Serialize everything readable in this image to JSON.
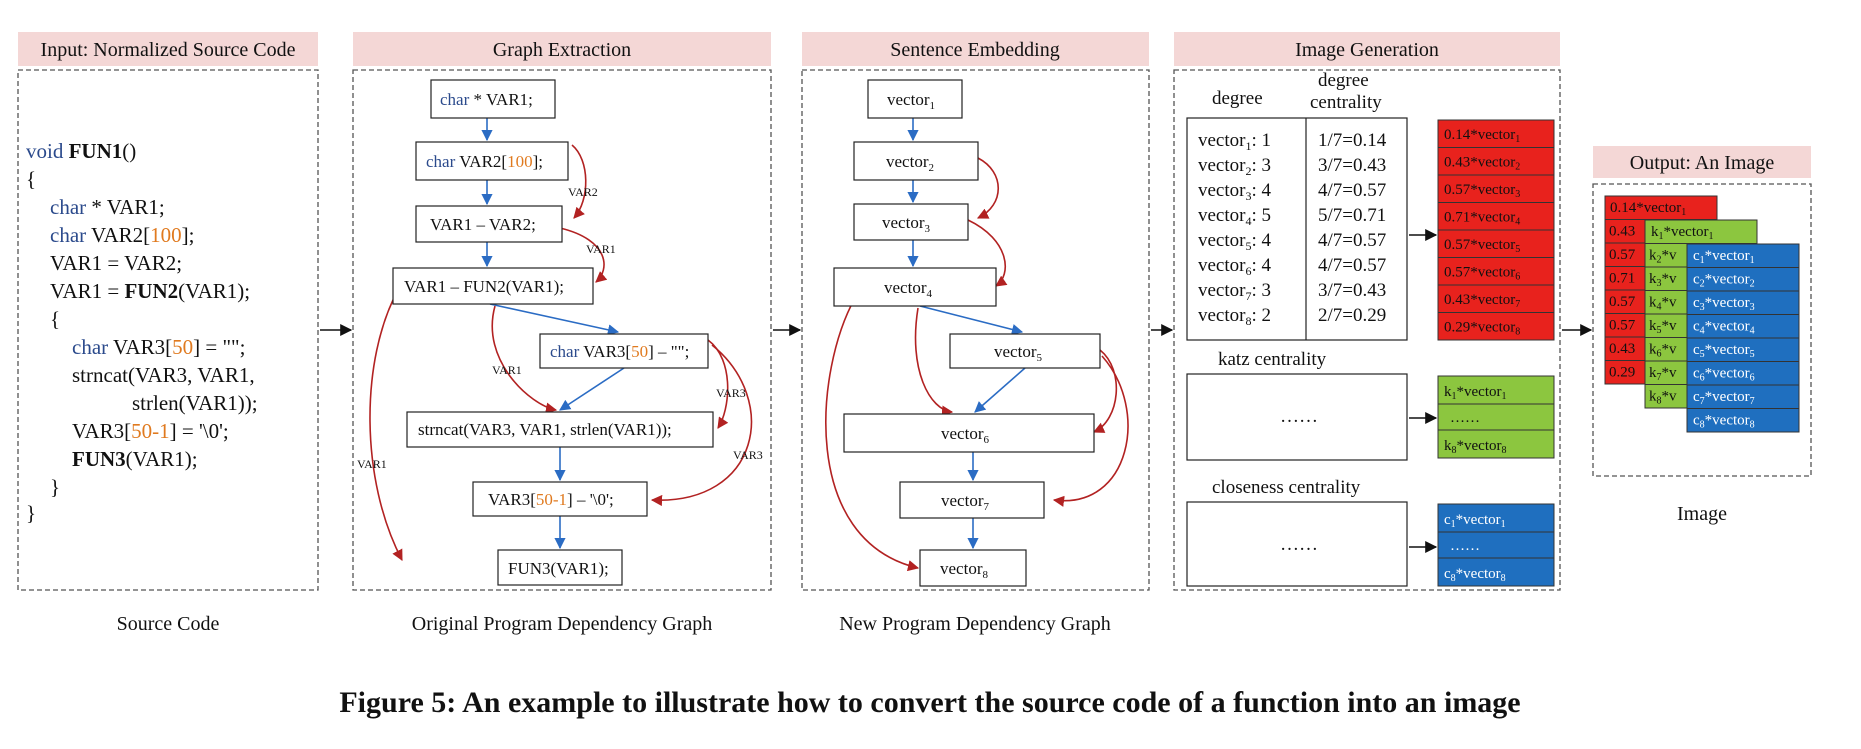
{
  "headers": {
    "input": "Input: Normalized Source Code",
    "graph": "Graph Extraction",
    "embed": "Sentence Embedding",
    "image": "Image Generation",
    "output": "Output: An Image"
  },
  "captions": {
    "source": "Source Code",
    "original": "Original Program Dependency Graph",
    "new": "New Program Dependency Graph",
    "image": "Image"
  },
  "figure_caption": "Figure 5: An example to illustrate how to convert the source code of a function into an image",
  "code": {
    "l1_kw": "void ",
    "l1_fn": "FUN1",
    "l1_rest": "()",
    "l2": "{",
    "l3_kw": "char",
    "l3_rest": " * VAR1;",
    "l4_kw": "char",
    "l4_a": " VAR2[",
    "l4_num": "100",
    "l4_b": "];",
    "l5": "VAR1 = VAR2;",
    "l6_a": "VAR1 = ",
    "l6_fn": "FUN2",
    "l6_b": "(VAR1);",
    "l7": "{",
    "l8_kw": "char",
    "l8_a": " VAR3[",
    "l8_num": "50",
    "l8_b": "] = \"\";",
    "l9": "strncat(VAR3, VAR1,",
    "l10": "strlen(VAR1));",
    "l11_a": "VAR3[",
    "l11_num": "50-1",
    "l11_b": "] = '\\0';",
    "l12_fn": "FUN3",
    "l12_b": "(VAR1);",
    "l13": "}",
    "l14": "}"
  },
  "pdg_nodes": {
    "n1_kw": "char",
    "n1_rest": " * VAR1;",
    "n2_kw": "char",
    "n2_a": " VAR2[",
    "n2_num": "100",
    "n2_b": "];",
    "n3": "VAR1 – VAR2;",
    "n4": "VAR1 – FUN2(VAR1);",
    "n5_kw": "char",
    "n5_a": " VAR3[",
    "n5_num": "50",
    "n5_b": "] – \"\";",
    "n6": "strncat(VAR3, VAR1, strlen(VAR1));",
    "n7_a": "VAR3[",
    "n7_num": "50-1",
    "n7_b": "] – '\\0';",
    "n8": "FUN3(VAR1);"
  },
  "edge_labels": {
    "e_var2": "VAR2",
    "e_var1a": "VAR1",
    "e_var1b": "VAR1",
    "e_var3a": "VAR3",
    "e_var3b": "VAR3",
    "e_var1c": "VAR1"
  },
  "vector_word": "vector",
  "vector_subs": [
    "1",
    "2",
    "3",
    "4",
    "5",
    "6",
    "7",
    "8"
  ],
  "table": {
    "col1": "degree",
    "col2a": "degree",
    "col2b": "centrality",
    "rows": [
      {
        "sub": "1",
        "deg": ": 1",
        "cent": "1/7=0.14"
      },
      {
        "sub": "2",
        "deg": ": 3",
        "cent": "3/7=0.43"
      },
      {
        "sub": "3",
        "deg": ": 4",
        "cent": "4/7=0.57"
      },
      {
        "sub": "4",
        "deg": ": 5",
        "cent": "5/7=0.71"
      },
      {
        "sub": "5",
        "deg": ": 4",
        "cent": "4/7=0.57"
      },
      {
        "sub": "6",
        "deg": ": 4",
        "cent": "4/7=0.57"
      },
      {
        "sub": "7",
        "deg": ": 3",
        "cent": "3/7=0.43"
      },
      {
        "sub": "8",
        "deg": ": 2",
        "cent": "2/7=0.29"
      }
    ],
    "katz_label": "katz centrality",
    "closeness_label": "closeness centrality",
    "ellipsis": "……"
  },
  "red_cells": [
    "0.14*vector",
    "0.43*vector",
    "0.57*vector",
    "0.71*vector",
    "0.57*vector",
    "0.57*vector",
    "0.43*vector",
    "0.29*vector"
  ],
  "green_cells": {
    "top_a": "k",
    "top_sub": "1",
    "top_b": "*vector",
    "top_vsub": "1",
    "mid": "……",
    "bot_a": "k",
    "bot_sub": "8",
    "bot_b": "*vector",
    "bot_vsub": "8"
  },
  "blue_cells": {
    "top_a": "c",
    "top_sub": "1",
    "top_b": "*vector",
    "top_vsub": "1",
    "mid": "……",
    "bot_a": "c",
    "bot_sub": "8",
    "bot_b": "*vector",
    "bot_vsub": "8"
  },
  "output_image": {
    "red_top": "0.14*vector",
    "red_top_sub": "1",
    "red_prefixes": [
      "0.43",
      "0.57",
      "0.71",
      "0.57",
      "0.57",
      "0.43",
      "0.29"
    ],
    "green_top": "k",
    "green_top_sub": "1",
    "green_top_rest": "*vector",
    "green_prefix_subs": [
      "2",
      "3",
      "4",
      "5",
      "6",
      "7",
      "8"
    ],
    "green_prefix_a": "k",
    "green_prefix_b": "*v",
    "blue_word_a": "c",
    "blue_word_b": "*vector",
    "blue_subs": [
      "1",
      "2",
      "3",
      "4",
      "5",
      "6",
      "7",
      "8"
    ]
  },
  "colors": {
    "header_fill": "#f4d7d6",
    "keyword": "#2b4a8c",
    "number": "#e07a1f",
    "red": "#e8221d",
    "green": "#8cc63f",
    "blue": "#1f6fbf",
    "blue_edge": "#2b6cc4",
    "red_edge": "#b22222"
  }
}
